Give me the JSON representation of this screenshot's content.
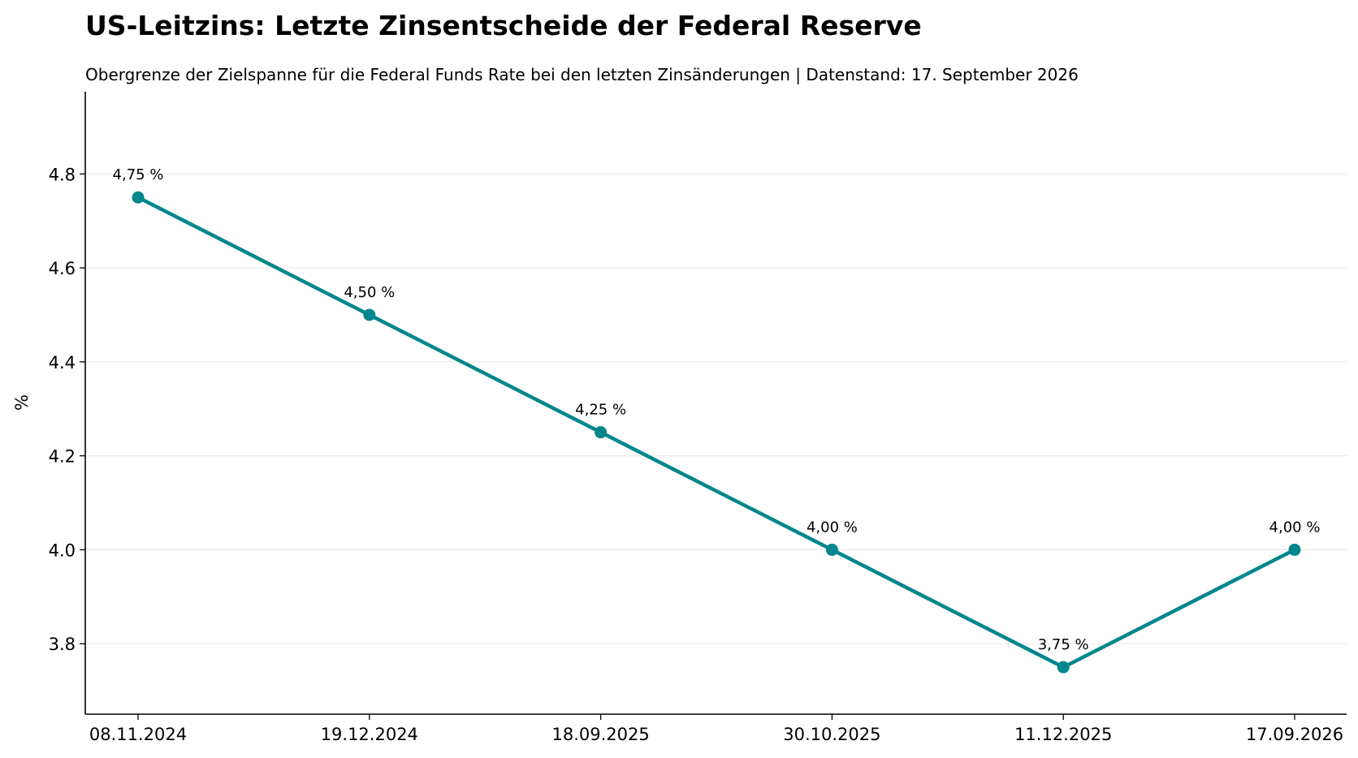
{
  "chart_data": {
    "type": "line",
    "title": "US-Leitzins: Letzte Zinsentscheide der Federal Reserve",
    "subtitle": "Obergrenze der Zielspanne für die Federal Funds Rate bei den letzten Zinsänderungen | Datenstand: 17. September 2026",
    "xlabel": "",
    "ylabel": "%",
    "categories": [
      "08.11.2024",
      "19.12.2024",
      "18.09.2025",
      "30.10.2025",
      "11.12.2025",
      "17.09.2026"
    ],
    "series": [
      {
        "values": [
          4.75,
          4.5,
          4.25,
          4.0,
          3.75,
          4.0
        ],
        "labels": [
          "4,75 %",
          "4,50 %",
          "4,25 %",
          "4,00 %",
          "3,75 %",
          "4,00 %"
        ],
        "color": "#00868b"
      }
    ],
    "ylim": [
      3.65,
      4.975
    ],
    "yticks": [
      3.8,
      4.0,
      4.2,
      4.4,
      4.6,
      4.8
    ],
    "ytick_labels": [
      "3.8",
      "4.0",
      "4.2",
      "4.4",
      "4.6",
      "4.8"
    ],
    "grid": "horizontal",
    "grid_color": "#ebebeb",
    "legend": "none"
  }
}
